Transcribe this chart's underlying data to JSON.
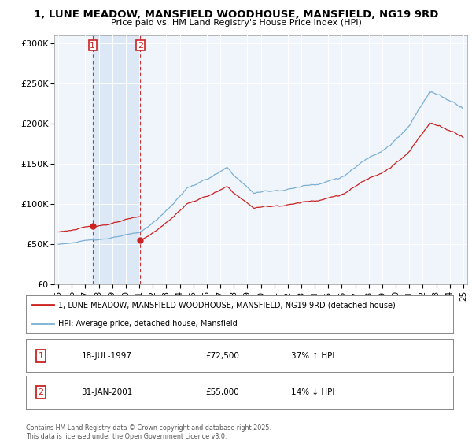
{
  "title": "1, LUNE MEADOW, MANSFIELD WOODHOUSE, MANSFIELD, NG19 9RD",
  "subtitle": "Price paid vs. HM Land Registry's House Price Index (HPI)",
  "legend_line1": "1, LUNE MEADOW, MANSFIELD WOODHOUSE, MANSFIELD, NG19 9RD (detached house)",
  "legend_line2": "HPI: Average price, detached house, Mansfield",
  "transaction1_date": "18-JUL-1997",
  "transaction1_price": "£72,500",
  "transaction1_hpi": "37% ↑ HPI",
  "transaction1_year": 1997.54,
  "transaction1_price_val": 72500,
  "transaction2_date": "31-JAN-2001",
  "transaction2_price": "£55,000",
  "transaction2_hpi": "14% ↓ HPI",
  "transaction2_year": 2001.08,
  "transaction2_price_val": 55000,
  "yticks": [
    0,
    50000,
    100000,
    150000,
    200000,
    250000,
    300000
  ],
  "ytick_labels": [
    "£0",
    "£50K",
    "£100K",
    "£150K",
    "£200K",
    "£250K",
    "£300K"
  ],
  "background_color": "#ffffff",
  "plot_bg_color": "#ffffff",
  "line_color_hpi": "#7bafd4",
  "line_color_price": "#cc2222",
  "marker_color": "#cc2222",
  "dashed_line_color": "#cc3333",
  "span_color": "#ddeeff",
  "copyright_text": "Contains HM Land Registry data © Crown copyright and database right 2025.\nThis data is licensed under the Open Government Licence v3.0.",
  "xlim": [
    1994.7,
    2025.3
  ],
  "ylim": [
    0,
    310000
  ],
  "xtick_years": [
    1995,
    1996,
    1997,
    1998,
    1999,
    2000,
    2001,
    2002,
    2003,
    2004,
    2005,
    2006,
    2007,
    2008,
    2009,
    2010,
    2011,
    2012,
    2013,
    2014,
    2015,
    2016,
    2017,
    2018,
    2019,
    2020,
    2021,
    2022,
    2023,
    2024,
    2025
  ],
  "xtick_labels": [
    "95",
    "96",
    "97",
    "98",
    "99",
    "00",
    "01",
    "02",
    "03",
    "04",
    "05",
    "06",
    "07",
    "08",
    "09",
    "10",
    "11",
    "12",
    "13",
    "14",
    "15",
    "16",
    "17",
    "18",
    "19",
    "20",
    "21",
    "22",
    "23",
    "24",
    "25"
  ]
}
